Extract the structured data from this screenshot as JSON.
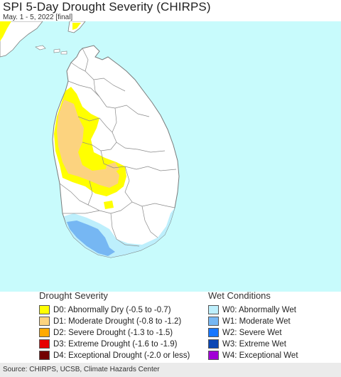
{
  "title": "SPI 5-Day Drought Severity (CHIRPS)",
  "subtitle": "May. 1 - 5, 2022 [final]",
  "colors": {
    "ocean": "#c8fbfc",
    "land": "#ffffff",
    "border": "#7a7a7a"
  },
  "legend": {
    "drought_title": "Drought Severity",
    "drought": [
      {
        "label": "D0: Abnormally Dry (-0.5 to -0.7)",
        "color": "#ffff00"
      },
      {
        "label": "D1: Moderate Drought (-0.8 to -1.2)",
        "color": "#fcd37f"
      },
      {
        "label": "D2: Severe Drought (-1.3 to -1.5)",
        "color": "#ffaa00"
      },
      {
        "label": "D3: Extreme Drought (-1.6 to -1.9)",
        "color": "#e60000"
      },
      {
        "label": "D4: Exceptional Drought (-2.0 or less)",
        "color": "#730000"
      }
    ],
    "wet_title": "Wet Conditions",
    "wet": [
      {
        "label": "W0: Abnormally Wet",
        "color": "#bdeffc"
      },
      {
        "label": "W1: Moderate Wet",
        "color": "#76b7f3"
      },
      {
        "label": "W2: Severe Wet",
        "color": "#1777ff"
      },
      {
        "label": "W3: Extreme Wet",
        "color": "#0b46b4"
      },
      {
        "label": "W4: Exceptional Wet",
        "color": "#a100d6"
      }
    ]
  },
  "source": "Source: CHIRPS, UCSB, Climate Hazards Center"
}
